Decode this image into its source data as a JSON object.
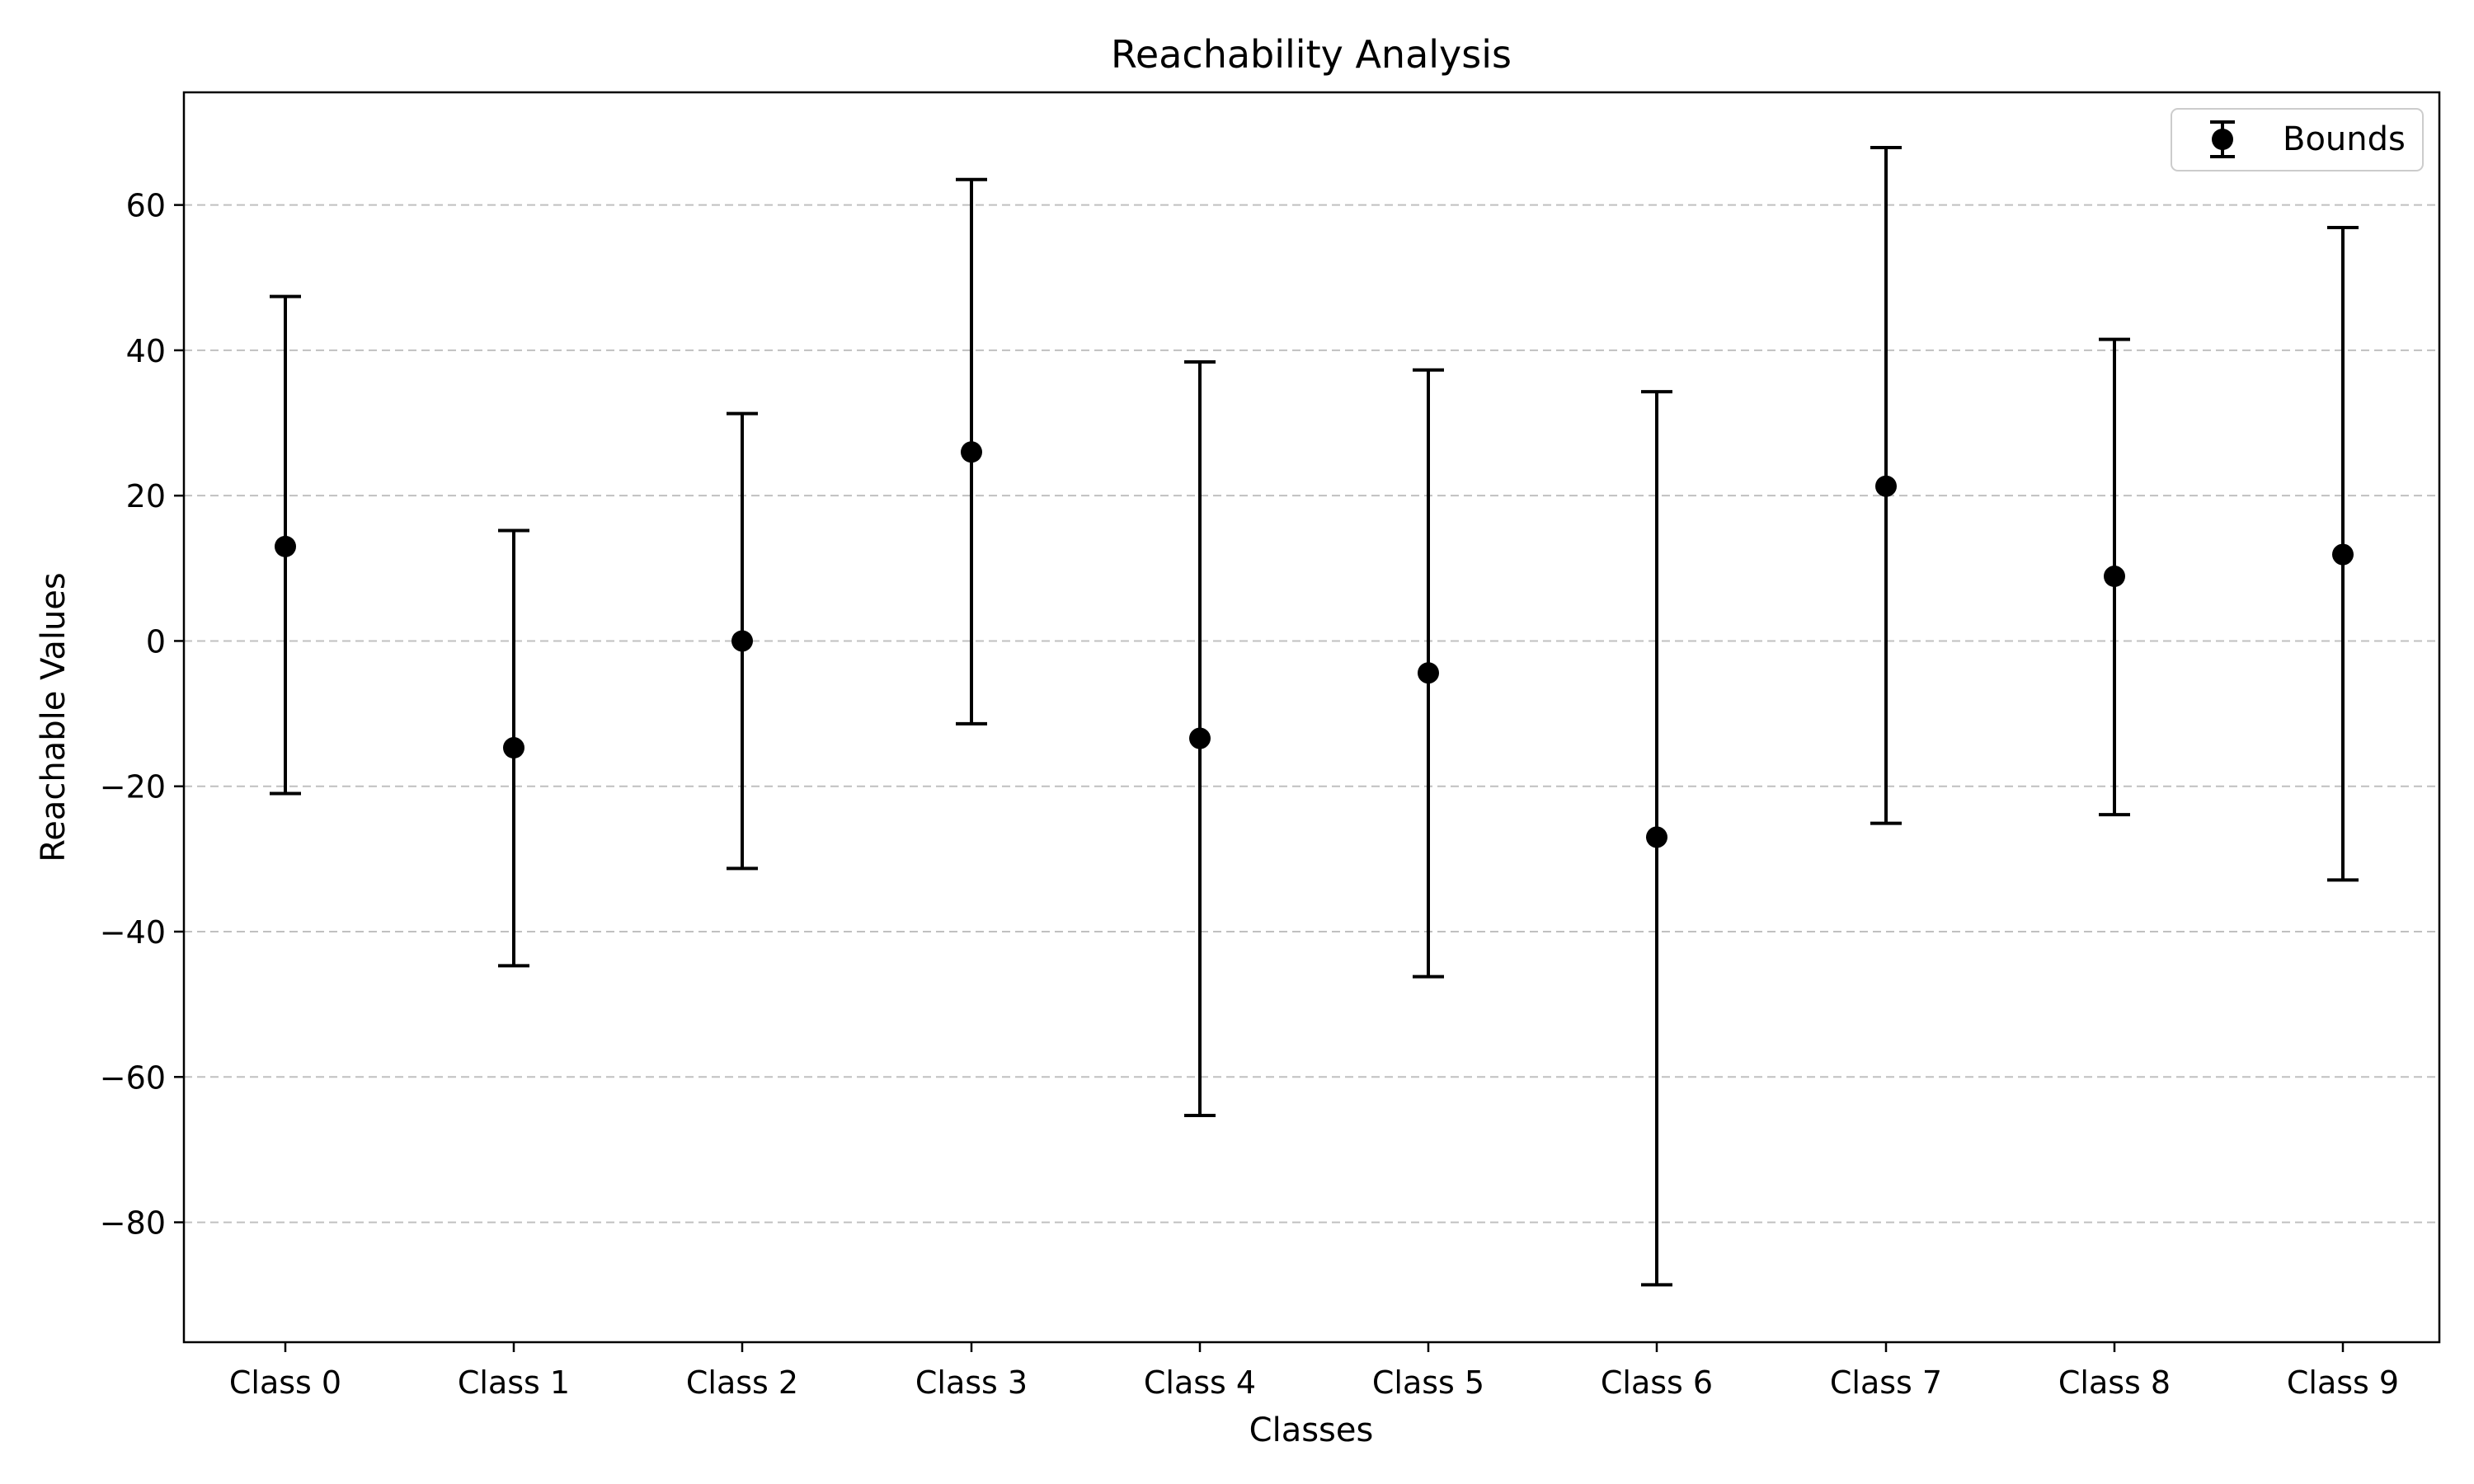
{
  "chart_data": {
    "type": "errorbar",
    "title": "Reachability Analysis",
    "xlabel": "Classes",
    "ylabel": "Reachable Values",
    "categories": [
      "Class 0",
      "Class 1",
      "Class 2",
      "Class 3",
      "Class 4",
      "Class 5",
      "Class 6",
      "Class 7",
      "Class 8",
      "Class 9"
    ],
    "series": [
      {
        "name": "Bounds",
        "center": [
          13.0,
          -14.7,
          0.0,
          26.0,
          -13.4,
          -4.4,
          -27.0,
          21.3,
          8.9,
          11.9
        ],
        "lower": [
          -21.0,
          -44.7,
          -31.3,
          -11.4,
          -65.3,
          -46.2,
          -88.6,
          -25.1,
          -23.9,
          -32.9
        ],
        "upper": [
          47.4,
          15.2,
          31.3,
          63.5,
          38.4,
          37.3,
          34.3,
          67.9,
          41.5,
          56.9
        ]
      }
    ],
    "ylim": [
      -96.5,
      75.5
    ],
    "yticks": [
      -80,
      -60,
      -40,
      -20,
      0,
      20,
      40,
      60
    ],
    "ytick_labels": [
      "−80",
      "−60",
      "−40",
      "−20",
      "0",
      "20",
      "40",
      "60"
    ],
    "grid": "y-dashed",
    "legend_position": "top-right",
    "colors": {
      "marker": "#000000",
      "grid": "#c0c0c0",
      "axis": "#000000"
    }
  }
}
